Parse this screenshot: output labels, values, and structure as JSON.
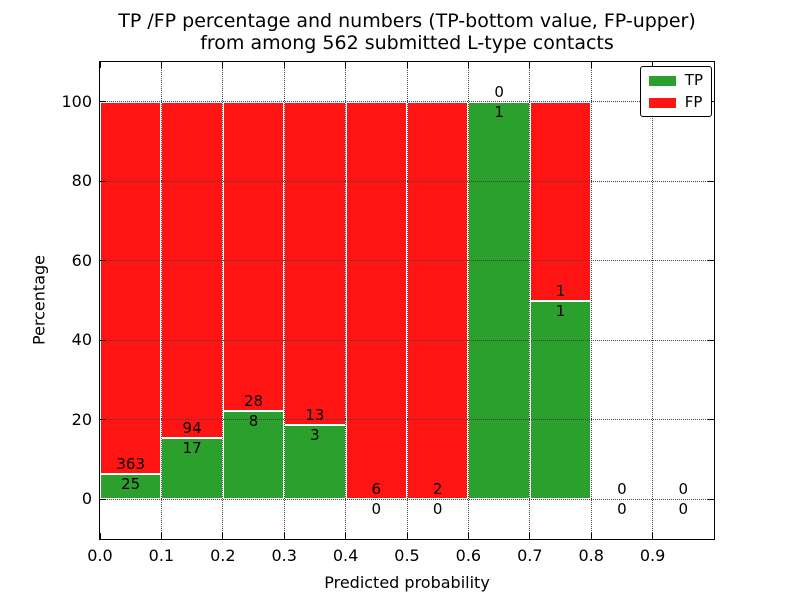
{
  "chart_data": {
    "type": "bar",
    "subtype": "stacked-percentage-histogram",
    "title_lines": [
      "TP /FP percentage and numbers (TP-bottom value, FP-upper)",
      "from among 562 submitted L-type contacts"
    ],
    "xlabel": "Predicted probability",
    "ylabel": "Percentage",
    "total_contacts": 562,
    "bin_starts": [
      0.0,
      0.1,
      0.2,
      0.3,
      0.4,
      0.5,
      0.6,
      0.7,
      0.8,
      0.9
    ],
    "bin_width": 0.1,
    "series": [
      {
        "name": "TP",
        "color": "#2ca02c",
        "counts": [
          25,
          17,
          8,
          3,
          0,
          0,
          1,
          1,
          0,
          0
        ]
      },
      {
        "name": "FP",
        "color": "#ff1414",
        "counts": [
          363,
          94,
          28,
          13,
          6,
          2,
          0,
          1,
          0,
          0
        ]
      }
    ],
    "tp_percent_of_bin": [
      6.4,
      15.3,
      22.2,
      18.8,
      0.0,
      0.0,
      100.0,
      50.0,
      null,
      null
    ],
    "xlim": [
      0.0,
      1.0
    ],
    "ylim": [
      -10,
      110
    ],
    "xticks": [
      "0.0",
      "0.1",
      "0.2",
      "0.3",
      "0.4",
      "0.5",
      "0.6",
      "0.7",
      "0.8",
      "0.9"
    ],
    "yticks": [
      0,
      20,
      40,
      60,
      80,
      100
    ],
    "grid": {
      "style": "dotted",
      "color": "#444444",
      "above_bars": true
    },
    "legend": {
      "position": "upper right",
      "entries": [
        "TP",
        "FP"
      ]
    }
  }
}
